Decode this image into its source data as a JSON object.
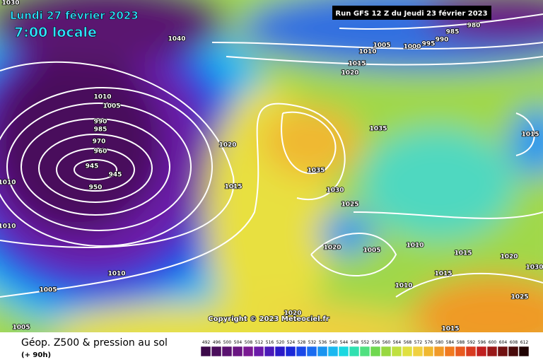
{
  "header": {
    "date": "Lundi 27 février 2023",
    "time": "7:00 locale",
    "run": "Run GFS 12 Z du Jeudi 23 février 2023"
  },
  "copyright": "Copyright © 2023 Meteociel.fr",
  "footer": {
    "title": "Géop. Z500 & pression au sol",
    "lead": "(+ 90h)"
  },
  "isobar_labels": [
    1030,
    1040,
    1010,
    1005,
    990,
    985,
    970,
    960,
    945,
    945,
    950,
    1020,
    1015,
    1010,
    1005,
    1005,
    1010,
    1010,
    1035,
    1035,
    1030,
    1025,
    1020,
    1005,
    1010,
    1015,
    1020,
    1015,
    1010,
    1025,
    1015,
    1020,
    1015,
    1010,
    1005,
    1000,
    995,
    990,
    985,
    980,
    1015,
    1020,
    1030
  ],
  "legend": {
    "labels": [
      492,
      496,
      500,
      504,
      508,
      512,
      516,
      520,
      524,
      528,
      532,
      536,
      540,
      544,
      548,
      552,
      556,
      560,
      564,
      568,
      572,
      576,
      580,
      584,
      588,
      592,
      596,
      600,
      604,
      608,
      612
    ],
    "colors": [
      "#3c0a4a",
      "#4a0e5c",
      "#5a1270",
      "#6a1682",
      "#7a1a92",
      "#6a1aa8",
      "#4a1ab8",
      "#2a1ac8",
      "#1a28d8",
      "#1a48e8",
      "#1a6cf0",
      "#1a94f0",
      "#1ab8f0",
      "#1ad8e0",
      "#30e0b0",
      "#50e080",
      "#70d850",
      "#98d840",
      "#c0e040",
      "#e0e040",
      "#f0d040",
      "#f0b830",
      "#f09a28",
      "#f07a20",
      "#e85a20",
      "#d83a20",
      "#c02020",
      "#981818",
      "#701010",
      "#480a0a",
      "#200404"
    ]
  }
}
